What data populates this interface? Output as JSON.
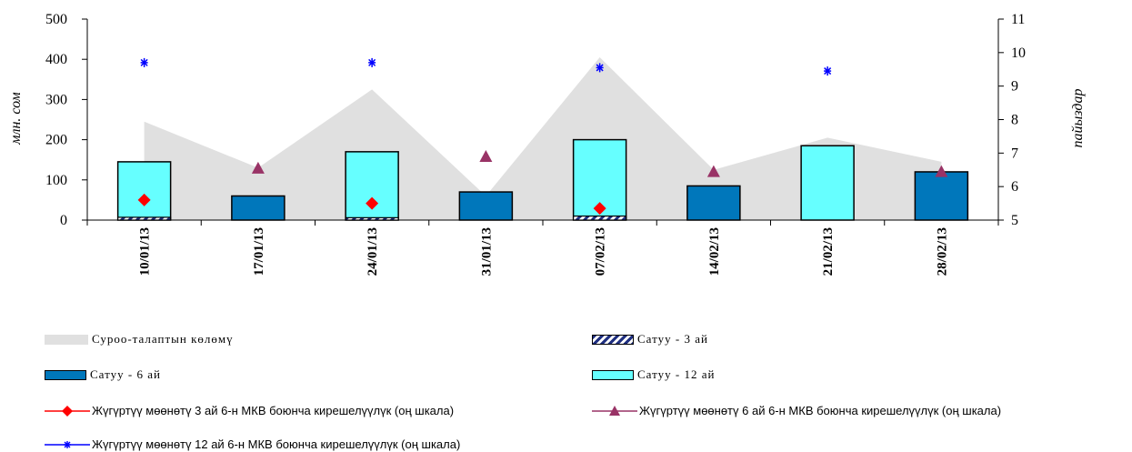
{
  "chart_data": {
    "type": "bar",
    "categories": [
      "10/01/13",
      "17/01/13",
      "24/01/13",
      "31/01/13",
      "07/02/13",
      "14/02/13",
      "21/02/13",
      "28/02/13"
    ],
    "y_left": {
      "label": "млн. сом",
      "ylim": [
        0,
        500
      ],
      "ticks": [
        "0",
        "100",
        "200",
        "300",
        "400",
        "500"
      ]
    },
    "y_right": {
      "label": "пайыздар",
      "ylim": [
        5,
        11
      ],
      "ticks": [
        "5",
        "6",
        "7",
        "8",
        "9",
        "10",
        "11"
      ]
    },
    "series": [
      {
        "name": "Суроо-талаптын көлөмү",
        "kind": "area",
        "axis": "left",
        "color": "#e0e0e0",
        "values": [
          245,
          130,
          325,
          60,
          405,
          125,
          205,
          145
        ]
      },
      {
        "name": "Сатуу - 3 ай",
        "kind": "bar",
        "axis": "left",
        "color": "#1f2f80",
        "values": [
          7,
          0,
          6,
          0,
          10,
          0,
          0,
          0
        ]
      },
      {
        "name": "Сатуу - 6 ай",
        "kind": "bar",
        "axis": "left",
        "color": "#0077bb",
        "values": [
          null,
          60,
          null,
          70,
          null,
          85,
          null,
          120
        ]
      },
      {
        "name": "Сатуу - 12 ай",
        "kind": "bar",
        "axis": "left",
        "color": "#66ffff",
        "values": [
          145,
          null,
          170,
          null,
          200,
          null,
          185,
          null
        ]
      },
      {
        "name": "Жүгүртүү мөөнөтү 3 ай 6-н МКВ боюнча кирешелүүлүк (оң шкала)",
        "kind": "marker",
        "axis": "right",
        "marker": "diamond",
        "color": "#ff0000",
        "values": [
          5.6,
          null,
          5.5,
          null,
          5.35,
          null,
          null,
          null
        ]
      },
      {
        "name": "Жүгүртүү мөөнөтү 6 ай 6-н МКВ боюнча кирешелүүлүк (оң шкала)",
        "kind": "marker",
        "axis": "right",
        "marker": "triangle",
        "color": "#993366",
        "values": [
          null,
          6.55,
          null,
          6.9,
          null,
          6.45,
          null,
          6.45
        ]
      },
      {
        "name": "Жүгүртүү мөөнөтү 12 ай 6-н МКВ боюнча кирешелүүлүк (оң шкала)",
        "kind": "marker",
        "axis": "right",
        "marker": "star",
        "color": "#0000ff",
        "values": [
          9.7,
          null,
          9.7,
          null,
          9.55,
          null,
          9.45,
          null
        ]
      }
    ],
    "grid": false,
    "legend_position": "bottom"
  },
  "legend": {
    "demand": "Суроо-талаптын көлөмү",
    "sale3": "Сатуу - 3 ай",
    "sale6": "Сатуу - 6 ай",
    "sale12": "Сатуу - 12 ай",
    "yield3": "Жүгүртүү мөөнөтү 3 ай 6-н МКВ боюнча кирешелүүлүк (оң шкала)",
    "yield6": "Жүгүртүү мөөнөтү 6 ай 6-н МКВ боюнча кирешелүүлүк (оң шкала)",
    "yield12": "Жүгүртүү мөөнөтү 12 ай 6-н МКВ боюнча кирешелүүлүк (оң шкала)"
  }
}
